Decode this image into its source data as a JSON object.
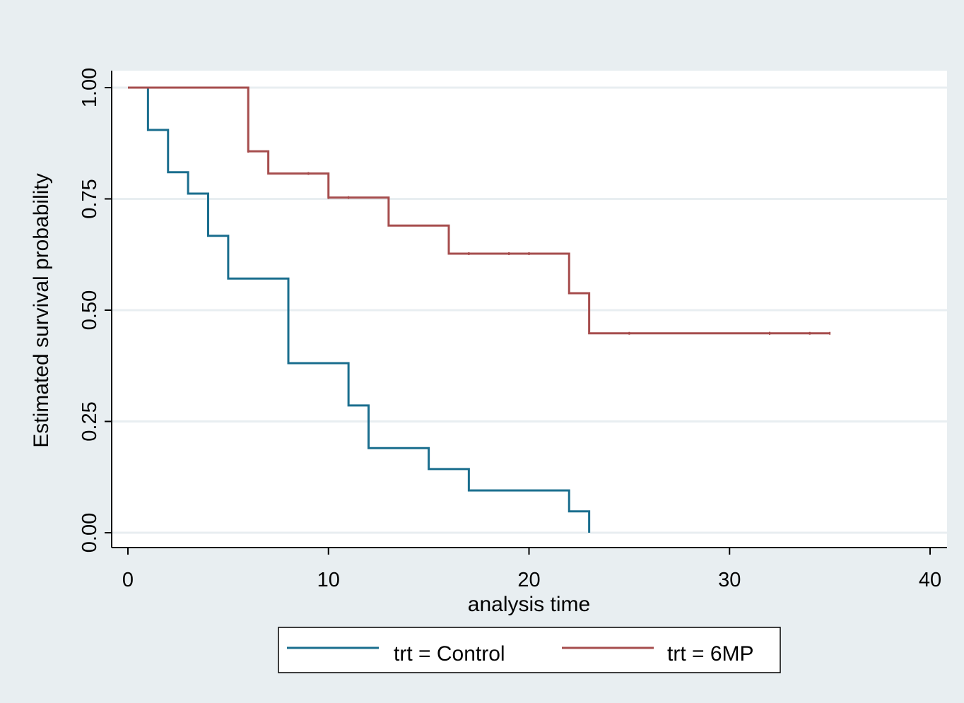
{
  "colors": {
    "background": "#e8eef1",
    "plot_region": "#ffffff",
    "gridline": "#e8eef1",
    "axis": "#000000",
    "legend_bg": "#ffffff",
    "legend_border": "#000000"
  },
  "chart_data": {
    "type": "line",
    "subtype": "kaplan-meier step function",
    "title": "",
    "xlabel": "analysis time",
    "ylabel": "Estimated survival probability",
    "xlim": [
      0,
      40
    ],
    "ylim": [
      0,
      1
    ],
    "x_ticks": [
      0,
      10,
      20,
      30,
      40
    ],
    "x_tick_labels": [
      "0",
      "10",
      "20",
      "30",
      "40"
    ],
    "y_ticks": [
      0,
      0.25,
      0.5,
      0.75,
      1
    ],
    "y_tick_labels": [
      "0.00",
      "0.25",
      "0.50",
      "0.75",
      "1.00"
    ],
    "grid": "horizontal",
    "legend_position": "bottom",
    "series": [
      {
        "name": "trt = Control",
        "color": "#1a6e8e",
        "steps": [
          [
            0,
            1.0
          ],
          [
            1,
            0.905
          ],
          [
            2,
            0.81
          ],
          [
            3,
            0.762
          ],
          [
            4,
            0.667
          ],
          [
            5,
            0.571
          ],
          [
            8,
            0.381
          ],
          [
            11,
            0.286
          ],
          [
            12,
            0.19
          ],
          [
            15,
            0.143
          ],
          [
            17,
            0.095
          ],
          [
            22,
            0.048
          ],
          [
            23,
            0.0
          ]
        ],
        "end_x": 23
      },
      {
        "name": "trt = 6MP",
        "color": "#a64d4d",
        "steps": [
          [
            0,
            1.0
          ],
          [
            6,
            0.857
          ],
          [
            7,
            0.807
          ],
          [
            10,
            0.753
          ],
          [
            13,
            0.69
          ],
          [
            16,
            0.627
          ],
          [
            22,
            0.538
          ],
          [
            23,
            0.448
          ]
        ],
        "end_x": 35,
        "censored_x": [
          6,
          9,
          10,
          11,
          17,
          19,
          20,
          25,
          32,
          32,
          34,
          35
        ]
      }
    ]
  }
}
